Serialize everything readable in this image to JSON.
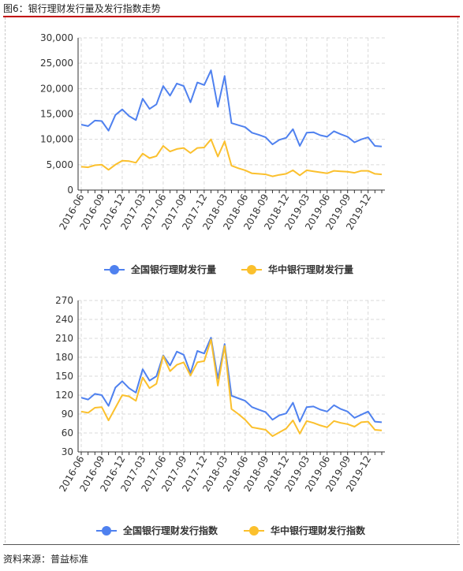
{
  "figure": {
    "title": "图6：银行理财发行量及发行指数走势",
    "source": "资料来源：普益标准"
  },
  "colors": {
    "national": "#4f81ef",
    "central": "#fbc02d",
    "grid": "#d9d9d9",
    "axis": "#333333"
  },
  "chart_data": [
    {
      "type": "line",
      "x": [
        "2016-06",
        "2016-07",
        "2016-08",
        "2016-09",
        "2016-10",
        "2016-11",
        "2016-12",
        "2017-01",
        "2017-02",
        "2017-03",
        "2017-04",
        "2017-05",
        "2017-06",
        "2017-07",
        "2017-08",
        "2017-09",
        "2017-10",
        "2017-11",
        "2017-12",
        "2018-01",
        "2018-02",
        "2018-03",
        "2018-04",
        "2018-05",
        "2018-06",
        "2018-07",
        "2018-08",
        "2018-09",
        "2018-10",
        "2018-11",
        "2018-12",
        "2019-01",
        "2019-02",
        "2019-03",
        "2019-04",
        "2019-05",
        "2019-06",
        "2019-07",
        "2019-08",
        "2019-09",
        "2019-10",
        "2019-11",
        "2019-12",
        "2020-01",
        "2020-02"
      ],
      "xticks": [
        "2016-06",
        "2016-09",
        "2016-12",
        "2017-03",
        "2017-06",
        "2017-09",
        "2017-12",
        "2018-03",
        "2018-06",
        "2018-09",
        "2018-12",
        "2019-03",
        "2019-06",
        "2019-09",
        "2019-12"
      ],
      "series": [
        {
          "name": "全国银行理财发行量",
          "color": "#4f81ef",
          "values": [
            12900,
            12600,
            13700,
            13600,
            11700,
            14800,
            15900,
            14600,
            13800,
            18000,
            16000,
            16900,
            20500,
            18600,
            21000,
            20500,
            17300,
            21200,
            20700,
            23600,
            16400,
            22500,
            13200,
            12800,
            12400,
            11300,
            10900,
            10400,
            9000,
            9900,
            10300,
            12000,
            8700,
            11300,
            11400,
            10800,
            10500,
            11600,
            11000,
            10500,
            9400,
            10000,
            10400,
            8700,
            8600
          ]
        },
        {
          "name": "华中银行理财发行量",
          "color": "#fbc02d",
          "values": [
            4600,
            4500,
            4900,
            5000,
            4000,
            5000,
            5800,
            5700,
            5400,
            7200,
            6300,
            6700,
            8700,
            7600,
            8100,
            8300,
            7300,
            8300,
            8400,
            10000,
            6600,
            9600,
            4800,
            4300,
            3900,
            3300,
            3200,
            3100,
            2700,
            3000,
            3200,
            3900,
            2900,
            3900,
            3700,
            3500,
            3300,
            3800,
            3700,
            3600,
            3400,
            3800,
            3800,
            3200,
            3100
          ]
        }
      ],
      "ylim": [
        0,
        30000
      ],
      "yticks": [
        "0",
        "5,000",
        "10,000",
        "15,000",
        "20,000",
        "25,000",
        "30,000"
      ],
      "legend_position": "bottom-center",
      "grid": true
    },
    {
      "type": "line",
      "x": [
        "2016-06",
        "2016-07",
        "2016-08",
        "2016-09",
        "2016-10",
        "2016-11",
        "2016-12",
        "2017-01",
        "2017-02",
        "2017-03",
        "2017-04",
        "2017-05",
        "2017-06",
        "2017-07",
        "2017-08",
        "2017-09",
        "2017-10",
        "2017-11",
        "2017-12",
        "2018-01",
        "2018-02",
        "2018-03",
        "2018-04",
        "2018-05",
        "2018-06",
        "2018-07",
        "2018-08",
        "2018-09",
        "2018-10",
        "2018-11",
        "2018-12",
        "2019-01",
        "2019-02",
        "2019-03",
        "2019-04",
        "2019-05",
        "2019-06",
        "2019-07",
        "2019-08",
        "2019-09",
        "2019-10",
        "2019-11",
        "2019-12",
        "2020-01",
        "2020-02"
      ],
      "xticks": [
        "2016-06",
        "2016-09",
        "2016-12",
        "2017-03",
        "2017-06",
        "2017-09",
        "2017-12",
        "2018-03",
        "2018-06",
        "2018-09",
        "2018-12",
        "2019-03",
        "2019-06",
        "2019-09",
        "2019-12"
      ],
      "series": [
        {
          "name": "全国银行理财发行指数",
          "color": "#4f81ef",
          "values": [
            116,
            113,
            122,
            120,
            103,
            132,
            142,
            131,
            124,
            161,
            143,
            150,
            183,
            167,
            189,
            184,
            155,
            190,
            186,
            211,
            146,
            201,
            119,
            115,
            111,
            101,
            97,
            93,
            81,
            88,
            91,
            108,
            78,
            101,
            102,
            97,
            94,
            104,
            98,
            94,
            84,
            89,
            94,
            78,
            77
          ]
        },
        {
          "name": "华中银行理财发行指数",
          "color": "#fbc02d",
          "values": [
            94,
            92,
            100,
            101,
            80,
            100,
            120,
            118,
            111,
            148,
            131,
            138,
            182,
            158,
            168,
            172,
            151,
            172,
            174,
            208,
            135,
            198,
            98,
            90,
            81,
            69,
            67,
            65,
            55,
            61,
            67,
            80,
            59,
            79,
            76,
            72,
            69,
            79,
            76,
            74,
            70,
            77,
            78,
            65,
            64
          ]
        }
      ],
      "ylim": [
        30,
        270
      ],
      "yticks": [
        "30",
        "60",
        "90",
        "120",
        "150",
        "180",
        "210",
        "240",
        "270"
      ],
      "legend_position": "bottom-center",
      "grid": true
    }
  ]
}
